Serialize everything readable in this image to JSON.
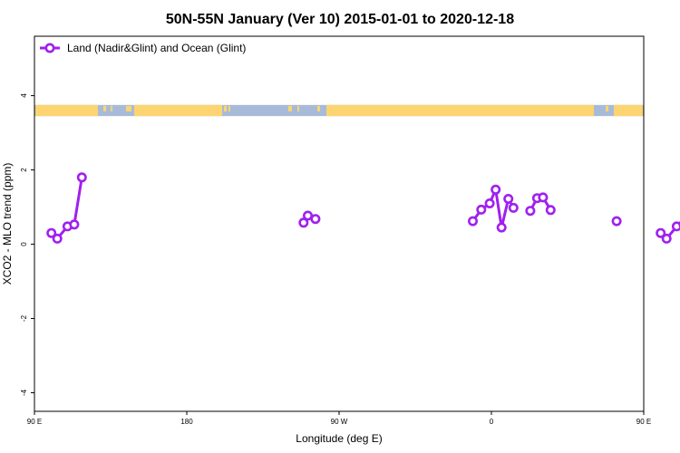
{
  "chart_data": {
    "type": "line",
    "title": "50N-55N January (Ver 10)   2015-01-01 to 2020-12-18",
    "xlabel": "Longitude (deg E)",
    "ylabel": "XCO2 - MLO trend (ppm)",
    "xlim": [
      90,
      450
    ],
    "ylim": [
      -4.5,
      5.6
    ],
    "x_ticks": [
      {
        "value": 90,
        "label": "90 E"
      },
      {
        "value": 180,
        "label": "180"
      },
      {
        "value": 270,
        "label": "90 W"
      },
      {
        "value": 360,
        "label": "0"
      },
      {
        "value": 450,
        "label": "90 E"
      },
      {
        "value": 540,
        "label": "180"
      }
    ],
    "y_ticks": [
      {
        "value": 4,
        "label": "4"
      },
      {
        "value": 2,
        "label": "2"
      },
      {
        "value": 0,
        "label": "0"
      },
      {
        "value": -2,
        "label": "-2"
      },
      {
        "value": -4,
        "label": "-4"
      }
    ],
    "legend_position": "top-left",
    "land_mask_band": {
      "y_range": [
        3.45,
        3.75
      ],
      "land_color": "#fcd471",
      "ocean_color": "#a7bbd9"
    },
    "series": [
      {
        "name": "Land (Nadir&Glint) and Ocean (Glint)",
        "color": "#a020f0",
        "segments": [
          [
            [
              100,
              0.3
            ],
            [
              103.5,
              0.15
            ],
            [
              109.5,
              0.48
            ],
            [
              113.5,
              0.53
            ],
            [
              118,
              1.8
            ]
          ],
          [
            [
              249,
              0.58
            ],
            [
              251.5,
              0.77
            ],
            [
              256,
              0.68
            ]
          ],
          [
            [
              349,
              0.62
            ],
            [
              354,
              0.93
            ],
            [
              359,
              1.1
            ],
            [
              362.5,
              1.47
            ],
            [
              366,
              0.45
            ],
            [
              370,
              1.22
            ],
            [
              373,
              0.98
            ]
          ],
          [
            [
              383,
              0.9
            ],
            [
              387,
              1.24
            ],
            [
              390.5,
              1.26
            ],
            [
              395,
              0.92
            ]
          ],
          [
            [
              434,
              0.62
            ]
          ],
          [
            [
              460,
              0.3
            ],
            [
              463.5,
              0.15
            ],
            [
              469.5,
              0.48
            ],
            [
              473.5,
              0.53
            ],
            [
              478,
              1.8
            ]
          ]
        ]
      }
    ]
  }
}
